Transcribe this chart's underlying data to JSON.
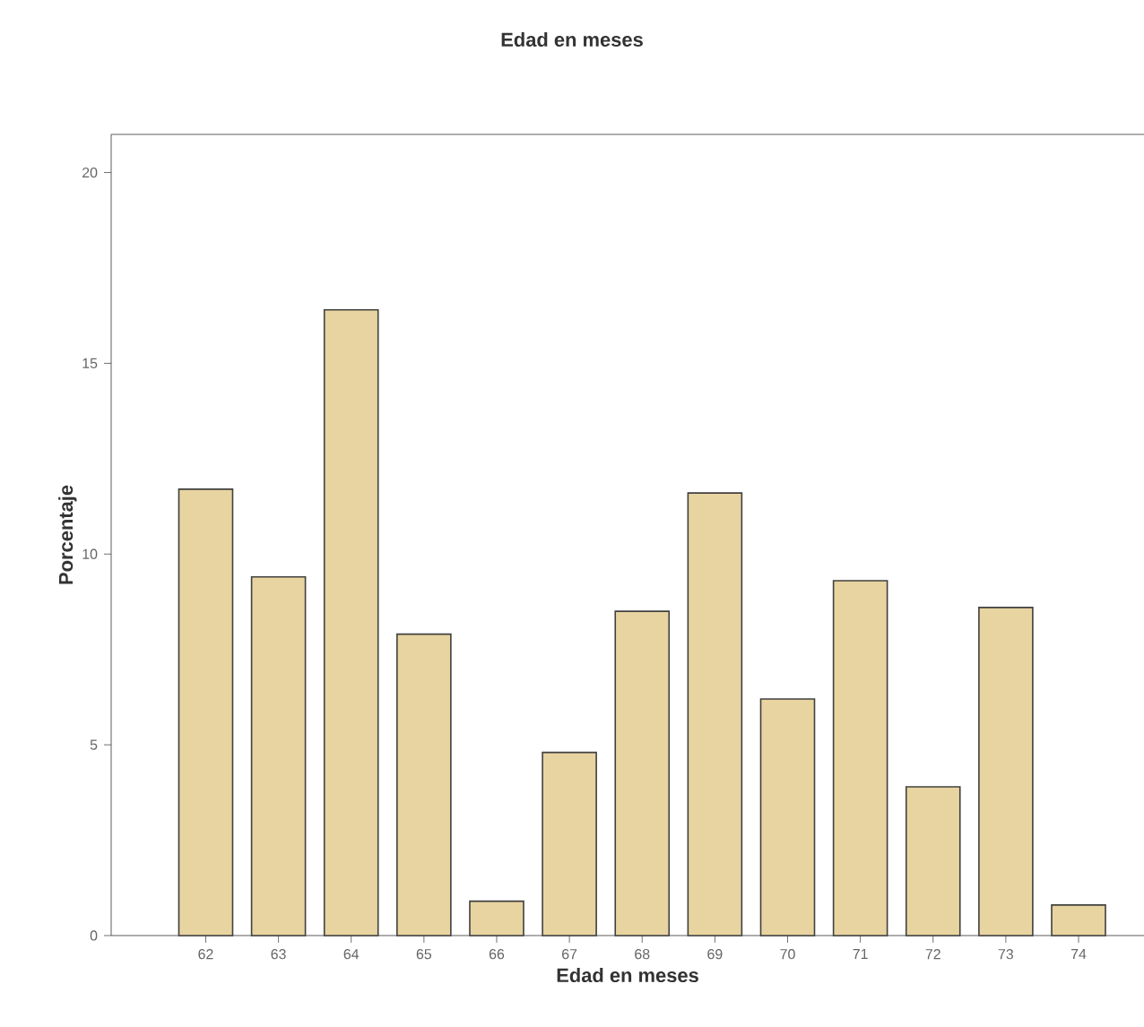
{
  "chart_data": {
    "type": "bar",
    "title": "Edad en meses",
    "xlabel": "Edad en meses",
    "ylabel": "Porcentaje",
    "categories": [
      "62",
      "63",
      "64",
      "65",
      "66",
      "67",
      "68",
      "69",
      "70",
      "71",
      "72",
      "73",
      "74"
    ],
    "values": [
      11.7,
      9.4,
      16.4,
      7.9,
      0.9,
      4.8,
      8.5,
      11.6,
      6.2,
      9.3,
      3.9,
      8.6,
      0.8
    ],
    "color": "#e8d4a0",
    "ylim": [
      0,
      21
    ],
    "yticks": [
      0,
      5,
      10,
      15,
      20
    ],
    "grid": false
  }
}
